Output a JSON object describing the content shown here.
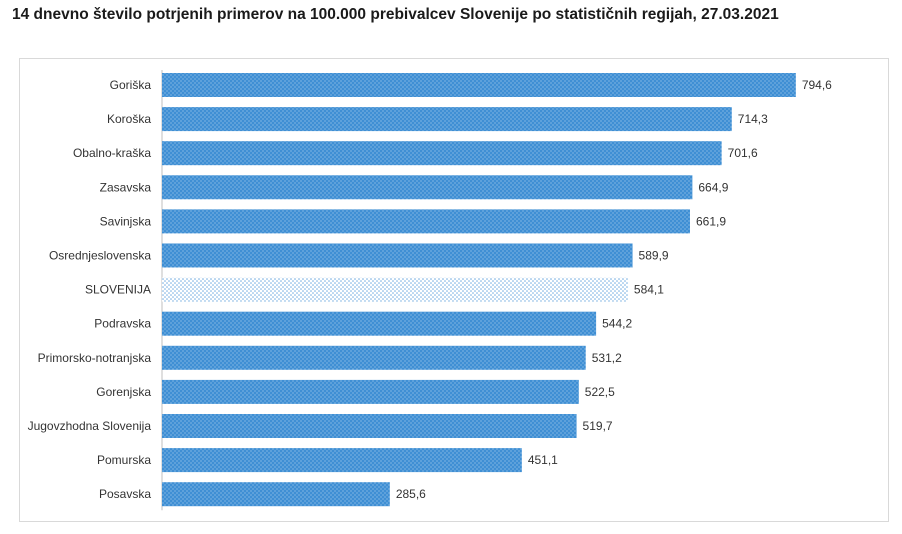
{
  "title": "14 dnevno število potrjenih primerov na 100.000 prebivalcev Slovenije po statističnih regijah, 27.03.2021",
  "colors": {
    "bar": "#3f8fd4",
    "bar_highlight": "#bfdcf3",
    "dots": "#ffffff"
  },
  "chart_data": {
    "type": "bar",
    "orientation": "horizontal",
    "title": "14 dnevno število potrjenih primerov na 100.000 prebivalcev Slovenije po statističnih regijah, 27.03.2021",
    "xlabel": "",
    "ylabel": "",
    "xlim": [
      0,
      860
    ],
    "grid": false,
    "categories": [
      "Goriška",
      "Koroška",
      "Obalno-kraška",
      "Zasavska",
      "Savinjska",
      "Osrednjeslovenska",
      "SLOVENIJA",
      "Podravska",
      "Primorsko-notranjska",
      "Gorenjska",
      "Jugovzhodna Slovenija",
      "Pomurska",
      "Posavska"
    ],
    "values": [
      794.6,
      714.3,
      701.6,
      664.9,
      661.9,
      589.9,
      584.1,
      544.2,
      531.2,
      522.5,
      519.7,
      451.1,
      285.6
    ],
    "value_labels": [
      "794,6",
      "714,3",
      "701,6",
      "664,9",
      "661,9",
      "589,9",
      "584,1",
      "544,2",
      "531,2",
      "522,5",
      "519,7",
      "451,1",
      "285,6"
    ],
    "highlight": "SLOVENIJA"
  }
}
